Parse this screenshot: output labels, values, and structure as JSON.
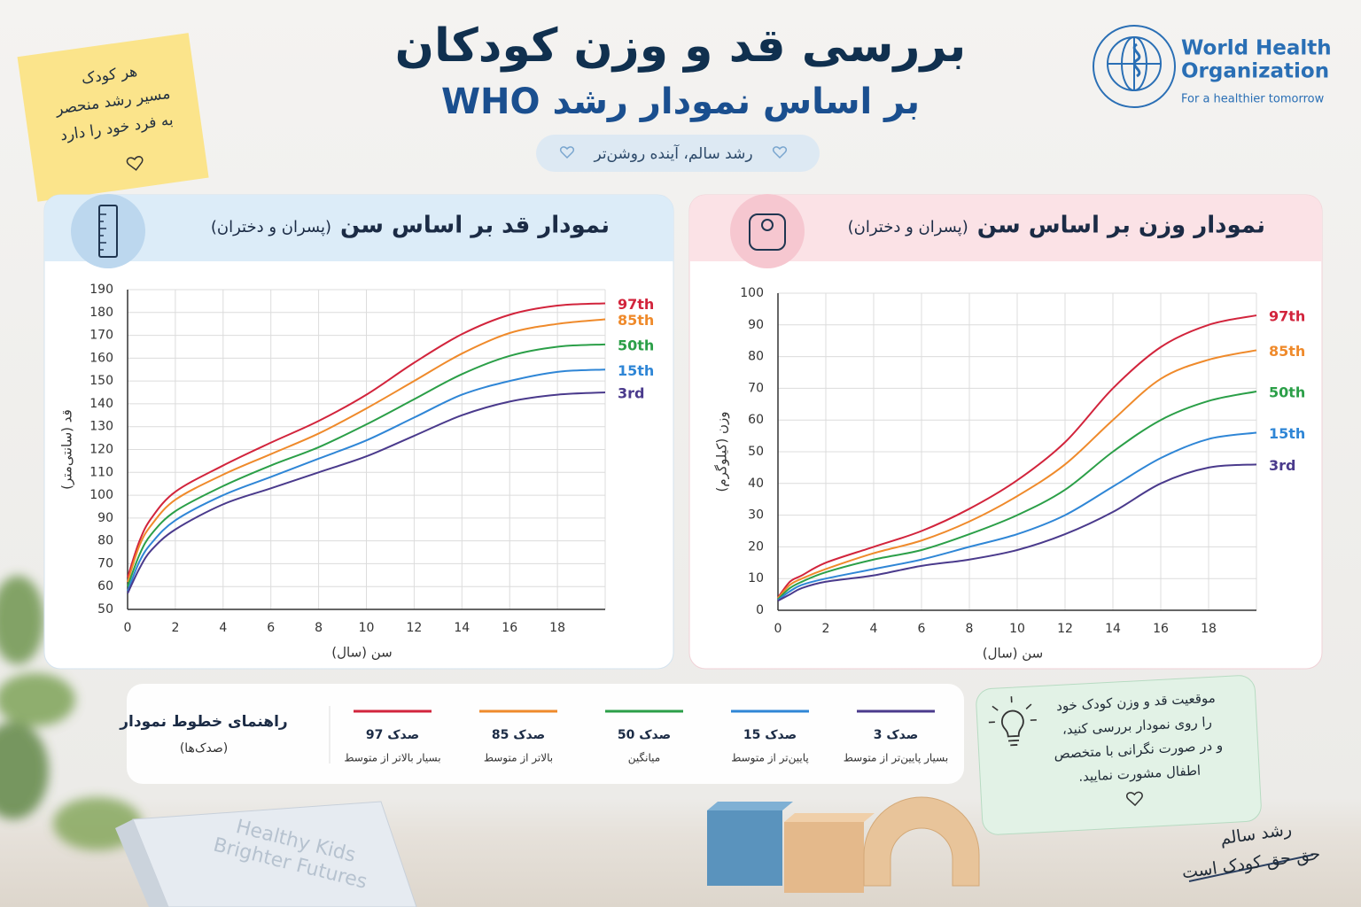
{
  "header": {
    "title": "بررسی قد و وزن کودکان",
    "subtitle": "بر اساس نمودار رشد WHO",
    "tagline": "رشد سالم، آینده روشن‌تر"
  },
  "logo": {
    "line1": "World Health",
    "line2": "Organization",
    "slogan": "For a healthier tomorrow"
  },
  "sticky_note": [
    "هر کودک",
    "مسیر رشد منحصر",
    "به فرد خود را دارد"
  ],
  "chart_data": [
    {
      "type": "line",
      "title": "نمودار قد بر اساس سن",
      "subtitle": "(پسران و دختران)",
      "xlabel": "سن (سال)",
      "ylabel": "قد (سانتی‌متر)",
      "grid": true,
      "x": [
        0,
        0.5,
        1,
        2,
        4,
        6,
        8,
        10,
        12,
        14,
        16,
        18,
        20
      ],
      "xlim": [
        0,
        20
      ],
      "xticks": [
        0,
        2,
        4,
        6,
        8,
        10,
        12,
        14,
        16,
        18
      ],
      "ylim": [
        50,
        190
      ],
      "yticks": [
        50,
        60,
        70,
        80,
        90,
        100,
        110,
        120,
        130,
        140,
        150,
        160,
        170,
        180,
        190
      ],
      "series": [
        {
          "name": "97th",
          "color": "#d2243c",
          "values": [
            64,
            80,
            90,
            101.5,
            113,
            123,
            132.5,
            144,
            158,
            170.5,
            179,
            183,
            184
          ]
        },
        {
          "name": "85th",
          "color": "#ef8a2b",
          "values": [
            62,
            78,
            87,
            98,
            109,
            118,
            127,
            138,
            150,
            162,
            171,
            175,
            177
          ]
        },
        {
          "name": "50th",
          "color": "#2b9f48",
          "values": [
            60,
            74,
            83,
            93,
            104,
            113,
            121,
            131,
            142,
            153,
            161,
            165,
            166
          ]
        },
        {
          "name": "15th",
          "color": "#2f86d6",
          "values": [
            58,
            71,
            79,
            89,
            100,
            108,
            116,
            124,
            134,
            144,
            150,
            154,
            155
          ]
        },
        {
          "name": "3rd",
          "color": "#4a3a8c",
          "values": [
            57,
            68,
            76,
            85,
            96,
            103,
            110,
            117,
            126,
            135,
            141,
            144,
            145
          ]
        }
      ]
    },
    {
      "type": "line",
      "title": "نمودار وزن بر اساس سن",
      "subtitle": "(پسران و دختران)",
      "xlabel": "سن (سال)",
      "ylabel": "وزن (کیلوگرم)",
      "grid": true,
      "x": [
        0,
        0.5,
        1,
        2,
        4,
        6,
        8,
        10,
        12,
        14,
        16,
        18,
        20
      ],
      "xlim": [
        0,
        20
      ],
      "xticks": [
        0,
        2,
        4,
        6,
        8,
        10,
        12,
        14,
        16,
        18
      ],
      "ylim": [
        0,
        100
      ],
      "yticks": [
        0,
        10,
        20,
        30,
        40,
        50,
        60,
        70,
        80,
        90,
        100
      ],
      "series": [
        {
          "name": "97th",
          "color": "#d2243c",
          "values": [
            4,
            9,
            11,
            15,
            20,
            25,
            32,
            41,
            53,
            70,
            83,
            90,
            93
          ]
        },
        {
          "name": "85th",
          "color": "#ef8a2b",
          "values": [
            3.8,
            8,
            10,
            13,
            18,
            22,
            28,
            36,
            46,
            60,
            73,
            79,
            82
          ]
        },
        {
          "name": "50th",
          "color": "#2b9f48",
          "values": [
            3.5,
            7,
            9,
            12,
            16,
            19,
            24,
            30,
            38,
            50,
            60,
            66,
            69
          ]
        },
        {
          "name": "15th",
          "color": "#2f86d6",
          "values": [
            3.2,
            6,
            8,
            10,
            13,
            16,
            20,
            24,
            30,
            39,
            48,
            54,
            56
          ]
        },
        {
          "name": "3rd",
          "color": "#4a3a8c",
          "values": [
            3,
            5,
            7,
            9,
            11,
            14,
            16,
            19,
            24,
            31,
            40,
            45,
            46
          ]
        }
      ]
    }
  ],
  "legend": {
    "title": "راهنمای خطوط نمودار",
    "subtitle": "(صدک‌ها)",
    "items": [
      {
        "label": "صدک 97",
        "description": "بسیار بالاتر از متوسط"
      },
      {
        "label": "صدک 85",
        "description": "بالاتر از متوسط"
      },
      {
        "label": "صدک 50",
        "description": "میانگین"
      },
      {
        "label": "صدک 15",
        "description": "پایین‌تر از متوسط"
      },
      {
        "label": "صدک 3",
        "description": "بسیار پایین‌تر از متوسط"
      }
    ]
  },
  "info_note": [
    "موقعیت قد و وزن کودک خود",
    "را روی نمودار بررسی کنید،",
    "و در صورت نگرانی با متخصص",
    "اطفال مشورت نمایید."
  ],
  "footer_note": [
    "رشد سالم",
    "حق حق کودک است"
  ],
  "book": [
    "Healthy Kids",
    "Brighter Futures"
  ]
}
